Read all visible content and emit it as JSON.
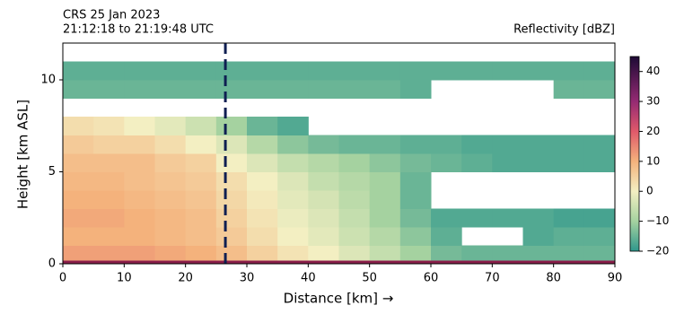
{
  "chart_data": {
    "type": "heatmap",
    "title": "CRS 25 Jan 2023",
    "subtitle": "21:12:18 to 21:19:48 UTC",
    "colorbar_label": "Reflectivity [dBZ]",
    "x_label": "Distance [km] →",
    "y_label": "Height [km ASL]",
    "x": [
      0,
      5,
      10,
      15,
      20,
      25,
      30,
      35,
      40,
      45,
      50,
      55,
      60,
      65,
      70,
      75,
      80,
      85,
      90
    ],
    "y": [
      0,
      1,
      2,
      3,
      4,
      5,
      6,
      7,
      8,
      9,
      10,
      11,
      12
    ],
    "z": [
      [
        12,
        12,
        12,
        11,
        10,
        8,
        5,
        2,
        0,
        -3,
        -6,
        -10,
        -14,
        -15,
        -15,
        -15,
        -15,
        -15
      ],
      [
        10,
        10,
        10,
        9,
        8,
        6,
        3,
        0,
        -2,
        -5,
        -8,
        -12,
        -16,
        null,
        null,
        -17,
        -16,
        -16
      ],
      [
        11,
        11,
        10,
        9,
        8,
        5,
        2,
        -1,
        -3,
        -6,
        -10,
        -14,
        -17,
        -17,
        -17,
        -17,
        -18,
        -18
      ],
      [
        10,
        10,
        9,
        8,
        7,
        4,
        1,
        -2,
        -4,
        -7,
        -10,
        -15,
        null,
        null,
        null,
        null,
        null,
        null
      ],
      [
        9,
        9,
        8,
        7,
        6,
        3,
        0,
        -3,
        -6,
        -8,
        -10,
        -15,
        null,
        null,
        null,
        null,
        null,
        null
      ],
      [
        8,
        8,
        8,
        6,
        5,
        0,
        -3,
        -6,
        -8,
        -10,
        -12,
        -14,
        -15,
        -16,
        -17,
        -17,
        -17,
        -17
      ],
      [
        6,
        5,
        5,
        3,
        0,
        -3,
        -8,
        -12,
        -14,
        -15,
        -15,
        -16,
        -16,
        -17,
        -17,
        -17,
        -17,
        -17
      ],
      [
        3,
        2,
        0,
        -2,
        -5,
        -10,
        -15,
        -17,
        null,
        null,
        null,
        null,
        null,
        null,
        null,
        null,
        null,
        null
      ],
      [
        null,
        null,
        null,
        null,
        null,
        null,
        null,
        null,
        null,
        null,
        null,
        null,
        null,
        null,
        null,
        null,
        null,
        null
      ],
      [
        -15,
        -15,
        -15,
        -15,
        -15,
        -15,
        -15,
        -15,
        -15,
        -15,
        -15,
        -16,
        null,
        null,
        null,
        null,
        -15,
        -15
      ],
      [
        -16,
        -16,
        -16,
        -16,
        -16,
        -16,
        -16,
        -16,
        -16,
        -16,
        -16,
        -16,
        -16,
        -16,
        -16,
        -16,
        -16,
        -16
      ],
      [
        null,
        null,
        null,
        null,
        null,
        null,
        null,
        null,
        null,
        null,
        null,
        null,
        null,
        null,
        null,
        null,
        null,
        null
      ]
    ],
    "xlim": [
      0,
      90
    ],
    "xticks": [
      0,
      10,
      20,
      30,
      40,
      50,
      60,
      70,
      80,
      90
    ],
    "ylim": [
      0,
      12
    ],
    "yticks": [
      0,
      5,
      10
    ],
    "clim": [
      -20,
      45
    ],
    "cticks": [
      {
        "value": -20,
        "label": "−20"
      },
      {
        "value": -10,
        "label": "−10"
      },
      0,
      10,
      20,
      30,
      40
    ],
    "colorscale": [
      [
        -20,
        "#2f978c"
      ],
      [
        -10,
        "#a5d2a0"
      ],
      [
        0,
        "#f3efc2"
      ],
      [
        10,
        "#f4b27c"
      ],
      [
        20,
        "#e0596a"
      ],
      [
        30,
        "#952a73"
      ],
      [
        45,
        "#1d0a35"
      ]
    ],
    "marker_x": 26.5,
    "marker_color": "#0f1f52"
  }
}
